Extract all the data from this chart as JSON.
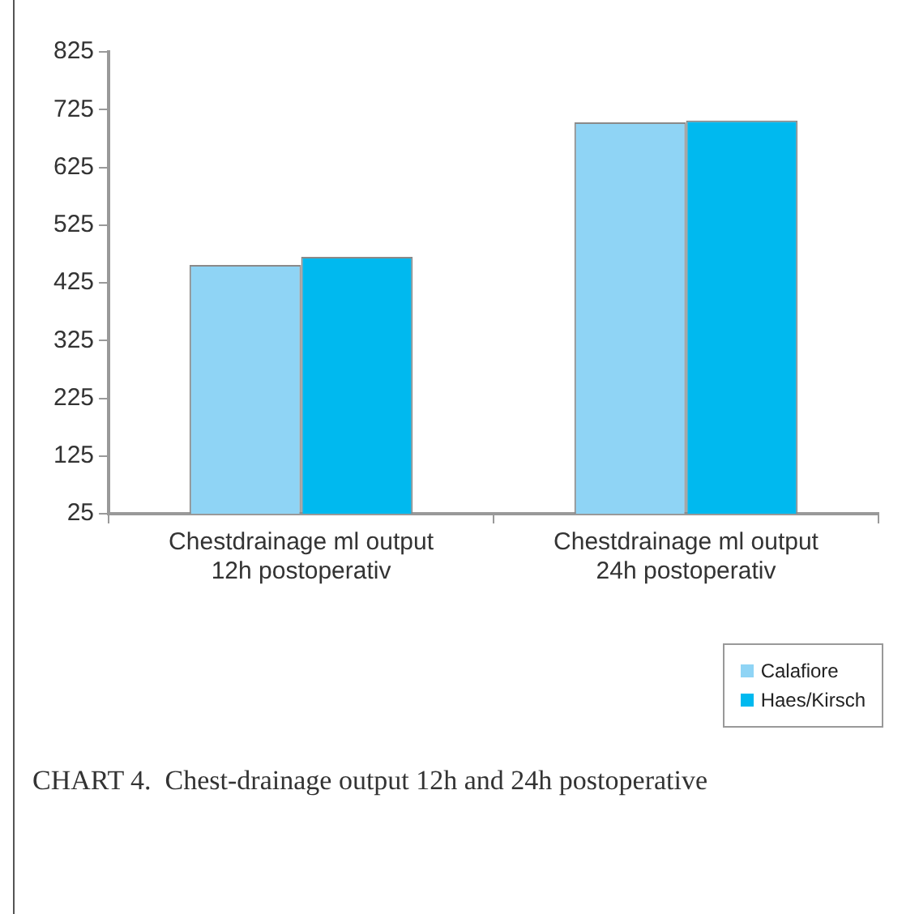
{
  "chart_data": {
    "type": "bar",
    "categories": [
      "Chestdrainage ml output\n12h postoperativ",
      "Chestdrainage ml output\n24h postoperativ"
    ],
    "series": [
      {
        "name": "Calafiore",
        "color": "#8fd4f5",
        "values": [
          456,
          703
        ]
      },
      {
        "name": "Haes/Kirsch",
        "color": "#00b9ef",
        "values": [
          470,
          706
        ]
      }
    ],
    "ylim": [
      25,
      825
    ],
    "yticks": [
      25,
      125,
      225,
      325,
      425,
      525,
      625,
      725,
      825
    ],
    "grid": false,
    "legend": "bottom right",
    "annotations": [
      "CHART 4.  Chest-drainage output 12h and 24h postoperative"
    ]
  }
}
